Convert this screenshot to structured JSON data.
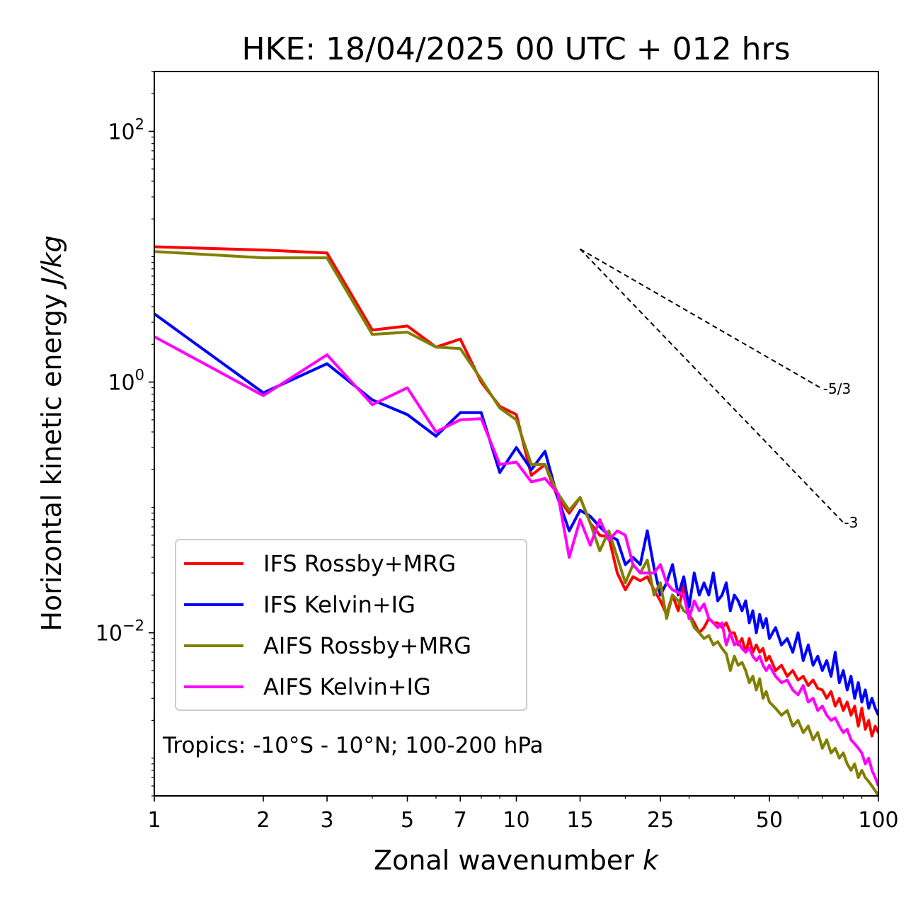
{
  "chart_data": {
    "type": "line",
    "title": "HKE: 18/04/2025 00 UTC + 012 hrs",
    "xlabel_text": "Zonal wavenumber",
    "xlabel_var": "k",
    "ylabel_text": "Horizontal kinetic energy",
    "ylabel_unit": "J/kg",
    "x_scale": "log",
    "y_scale": "log",
    "xlim": [
      1,
      100
    ],
    "ylim": [
      0.0005,
      300
    ],
    "x_ticks": [
      {
        "value": 1,
        "label": "1"
      },
      {
        "value": 2,
        "label": "2"
      },
      {
        "value": 3,
        "label": "3"
      },
      {
        "value": 5,
        "label": "5"
      },
      {
        "value": 7,
        "label": "7"
      },
      {
        "value": 10,
        "label": "10"
      },
      {
        "value": 15,
        "label": "15"
      },
      {
        "value": 25,
        "label": "25"
      },
      {
        "value": 50,
        "label": "50"
      },
      {
        "value": 100,
        "label": "100"
      }
    ],
    "y_ticks": [
      {
        "value": 0.01,
        "base": "10",
        "exp": "−2"
      },
      {
        "value": 1,
        "base": "10",
        "exp": "0"
      },
      {
        "value": 100,
        "base": "10",
        "exp": "2"
      }
    ],
    "grid": false,
    "legend_position": "lower-left",
    "annotation": "Tropics: -10°S - 10°N; 100-200 hPa",
    "reference_slopes": [
      {
        "label": "-5/3",
        "x_start": 15,
        "x_end": 70,
        "y_start": 11.5
      },
      {
        "label": "-3",
        "x_start": 15,
        "x_end": 80,
        "y_start": 11.5
      }
    ],
    "series": [
      {
        "name": "IFS Rossby+MRG",
        "color": "#ff0000",
        "x": [
          1,
          2,
          3,
          4,
          5,
          6,
          7,
          8,
          9,
          10,
          11,
          12,
          13,
          14,
          15,
          16,
          17,
          18,
          19,
          20,
          21,
          22,
          23,
          24,
          25,
          26,
          27,
          28,
          29,
          30,
          31,
          32,
          33,
          34,
          35,
          36,
          37,
          38,
          39,
          40,
          41,
          42,
          43,
          44,
          45,
          46,
          47,
          48,
          49,
          50,
          52,
          54,
          56,
          58,
          60,
          62,
          64,
          66,
          68,
          70,
          72,
          74,
          76,
          78,
          80,
          82,
          84,
          86,
          88,
          90,
          92,
          94,
          96,
          98,
          100
        ],
        "values": [
          12,
          11.3,
          10.7,
          2.6,
          2.8,
          1.9,
          2.2,
          1.0,
          0.64,
          0.55,
          0.18,
          0.22,
          0.12,
          0.09,
          0.12,
          0.075,
          0.06,
          0.058,
          0.03,
          0.022,
          0.028,
          0.026,
          0.028,
          0.022,
          0.018,
          0.014,
          0.02,
          0.015,
          0.024,
          0.014,
          0.012,
          0.01,
          0.011,
          0.013,
          0.012,
          0.012,
          0.011,
          0.012,
          0.01,
          0.01,
          0.008,
          0.009,
          0.007,
          0.009,
          0.007,
          0.008,
          0.007,
          0.0075,
          0.006,
          0.0065,
          0.005,
          0.0055,
          0.0045,
          0.005,
          0.0042,
          0.0045,
          0.0038,
          0.0042,
          0.0036,
          0.0035,
          0.003,
          0.0034,
          0.0026,
          0.003,
          0.0024,
          0.0028,
          0.0022,
          0.0026,
          0.0018,
          0.0025,
          0.0017,
          0.002,
          0.0015,
          0.0018,
          0.0016
        ]
      },
      {
        "name": "IFS Kelvin+IG",
        "color": "#0000ff",
        "x": [
          1,
          2,
          3,
          4,
          5,
          6,
          7,
          8,
          9,
          10,
          11,
          12,
          13,
          14,
          15,
          16,
          17,
          18,
          19,
          20,
          21,
          22,
          23,
          24,
          25,
          26,
          27,
          28,
          29,
          30,
          31,
          32,
          33,
          34,
          35,
          36,
          37,
          38,
          39,
          40,
          41,
          42,
          43,
          44,
          45,
          46,
          47,
          48,
          49,
          50,
          52,
          54,
          56,
          58,
          60,
          62,
          64,
          66,
          68,
          70,
          72,
          74,
          76,
          78,
          80,
          82,
          84,
          86,
          88,
          90,
          92,
          94,
          96,
          98,
          100
        ],
        "values": [
          3.5,
          0.82,
          1.4,
          0.72,
          0.55,
          0.37,
          0.57,
          0.57,
          0.19,
          0.3,
          0.2,
          0.28,
          0.12,
          0.065,
          0.095,
          0.085,
          0.07,
          0.06,
          0.055,
          0.035,
          0.04,
          0.035,
          0.065,
          0.033,
          0.02,
          0.025,
          0.035,
          0.02,
          0.028,
          0.016,
          0.03,
          0.02,
          0.025,
          0.02,
          0.03,
          0.018,
          0.02,
          0.025,
          0.015,
          0.02,
          0.018,
          0.015,
          0.018,
          0.012,
          0.015,
          0.01,
          0.014,
          0.011,
          0.013,
          0.009,
          0.011,
          0.008,
          0.009,
          0.007,
          0.01,
          0.006,
          0.008,
          0.0055,
          0.0065,
          0.005,
          0.006,
          0.0045,
          0.007,
          0.004,
          0.005,
          0.0035,
          0.0045,
          0.003,
          0.004,
          0.0028,
          0.0035,
          0.0025,
          0.003,
          0.0025,
          0.0022
        ]
      },
      {
        "name": "AIFS Rossby+MRG",
        "color": "#808000",
        "x": [
          1,
          2,
          3,
          4,
          5,
          6,
          7,
          8,
          9,
          10,
          11,
          12,
          13,
          14,
          15,
          16,
          17,
          18,
          19,
          20,
          21,
          22,
          23,
          24,
          25,
          26,
          27,
          28,
          29,
          30,
          31,
          32,
          33,
          34,
          35,
          36,
          37,
          38,
          39,
          40,
          41,
          42,
          43,
          44,
          45,
          46,
          47,
          48,
          49,
          50,
          52,
          54,
          56,
          58,
          60,
          62,
          64,
          66,
          68,
          70,
          72,
          74,
          76,
          78,
          80,
          82,
          84,
          86,
          88,
          90,
          92,
          94,
          96,
          98,
          100
        ],
        "values": [
          11,
          9.8,
          9.8,
          2.4,
          2.5,
          1.9,
          1.85,
          1.05,
          0.62,
          0.5,
          0.22,
          0.22,
          0.13,
          0.095,
          0.12,
          0.075,
          0.045,
          0.065,
          0.04,
          0.025,
          0.035,
          0.03,
          0.038,
          0.02,
          0.025,
          0.013,
          0.02,
          0.018,
          0.015,
          0.014,
          0.011,
          0.01,
          0.009,
          0.0095,
          0.008,
          0.0085,
          0.0075,
          0.0068,
          0.005,
          0.0065,
          0.0055,
          0.0058,
          0.005,
          0.004,
          0.0045,
          0.0035,
          0.0043,
          0.003,
          0.0034,
          0.0028,
          0.0025,
          0.0022,
          0.0024,
          0.0018,
          0.002,
          0.0016,
          0.0018,
          0.0014,
          0.0016,
          0.0012,
          0.0014,
          0.0011,
          0.0012,
          0.001,
          0.0011,
          0.0009,
          0.0008,
          0.0009,
          0.0007,
          0.0008,
          0.0007,
          0.00065,
          0.0006,
          0.00055,
          0.0005
        ]
      },
      {
        "name": "AIFS Kelvin+IG",
        "color": "#ff00ff",
        "x": [
          1,
          2,
          3,
          4,
          5,
          6,
          7,
          8,
          9,
          10,
          11,
          12,
          13,
          14,
          15,
          16,
          17,
          18,
          19,
          20,
          21,
          22,
          23,
          24,
          25,
          26,
          27,
          28,
          29,
          30,
          31,
          32,
          33,
          34,
          35,
          36,
          37,
          38,
          39,
          40,
          41,
          42,
          43,
          44,
          45,
          46,
          47,
          48,
          49,
          50,
          52,
          54,
          56,
          58,
          60,
          62,
          64,
          66,
          68,
          70,
          72,
          74,
          76,
          78,
          80,
          82,
          84,
          86,
          88,
          90,
          92,
          94,
          96,
          98,
          100
        ],
        "values": [
          2.3,
          0.78,
          1.65,
          0.66,
          0.9,
          0.4,
          0.5,
          0.51,
          0.22,
          0.23,
          0.16,
          0.17,
          0.13,
          0.04,
          0.08,
          0.05,
          0.08,
          0.055,
          0.065,
          0.06,
          0.035,
          0.03,
          0.03,
          0.03,
          0.035,
          0.025,
          0.022,
          0.021,
          0.02,
          0.013,
          0.018,
          0.015,
          0.017,
          0.013,
          0.012,
          0.011,
          0.012,
          0.008,
          0.01,
          0.008,
          0.0085,
          0.0075,
          0.007,
          0.0075,
          0.0065,
          0.006,
          0.0065,
          0.0055,
          0.005,
          0.0055,
          0.0045,
          0.004,
          0.0042,
          0.0035,
          0.0032,
          0.0038,
          0.0028,
          0.003,
          0.0024,
          0.0026,
          0.0022,
          0.002,
          0.0021,
          0.0018,
          0.0016,
          0.0017,
          0.0014,
          0.0013,
          0.0012,
          0.0011,
          0.0009,
          0.001,
          0.0008,
          0.0007,
          0.0006
        ]
      }
    ]
  }
}
